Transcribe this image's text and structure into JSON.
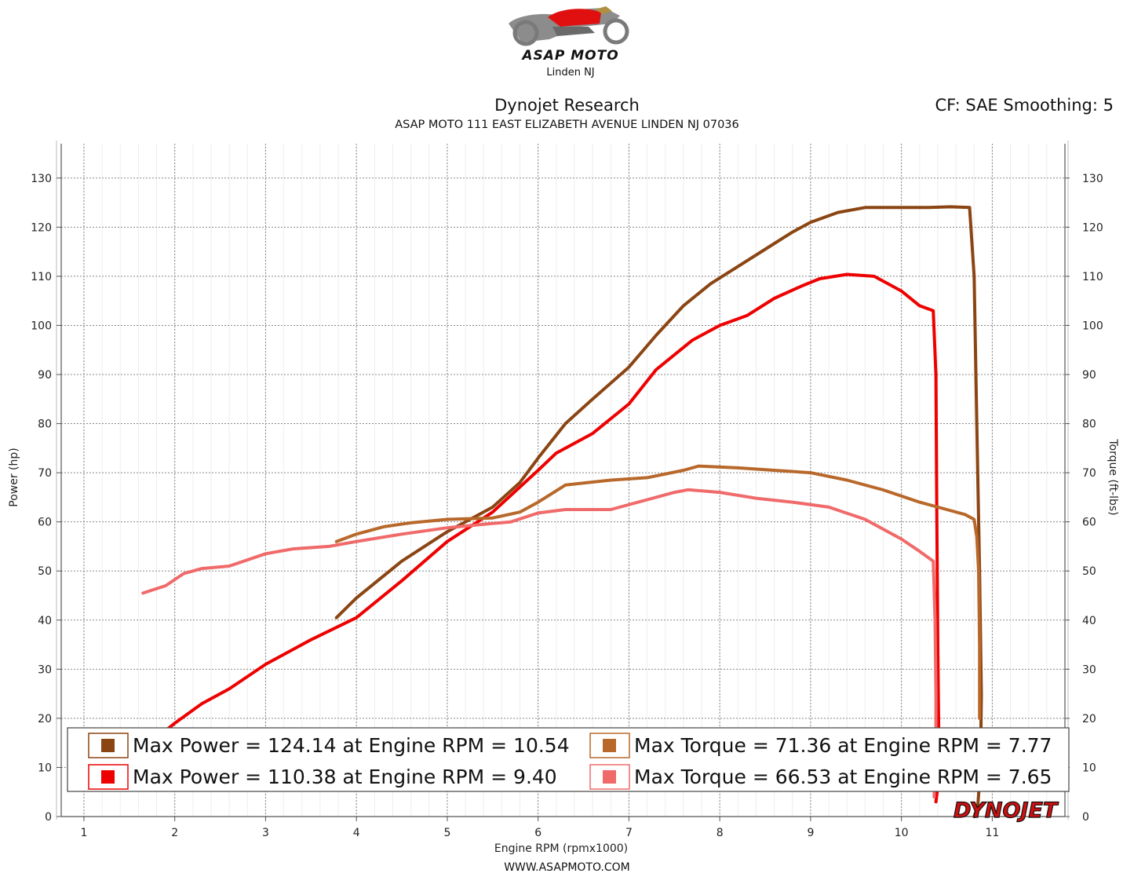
{
  "header": {
    "logo_text": "ASAP MOTO",
    "logo_subtext": "Linden NJ",
    "title": "Dynojet Research",
    "subtitle": "ASAP MOTO 111 EAST ELIZABETH AVENUE LINDEN NJ 07036",
    "correction": "CF: SAE Smoothing: 5"
  },
  "footer": {
    "website": "WWW.ASAPMOTO.COM"
  },
  "watermark": "DYNOJET",
  "chart_data": {
    "type": "line",
    "xlabel": "Engine RPM (rpmx1000)",
    "ylabel_left": "Power (hp)",
    "ylabel_right": "Torque (ft-lbs)",
    "xlim": [
      0.75,
      11.8
    ],
    "ylim": [
      0,
      137
    ],
    "x_ticks": [
      1,
      2,
      3,
      4,
      5,
      6,
      7,
      8,
      9,
      10,
      11
    ],
    "y_ticks": [
      0,
      10,
      20,
      30,
      40,
      50,
      60,
      70,
      80,
      90,
      100,
      110,
      120,
      130
    ],
    "grid": true,
    "legend_position": "bottom",
    "legend": [
      {
        "label": "Max Power = 124.14 at Engine RPM = 10.54",
        "color": "#8B4513"
      },
      {
        "label": "Max Power = 110.38 at Engine RPM = 9.40",
        "color": "#EE0000"
      },
      {
        "label": "Max Torque = 71.36 at Engine RPM = 7.77",
        "color": "#B8682A"
      },
      {
        "label": "Max Torque = 66.53 at Engine RPM = 7.65",
        "color": "#F06A6A"
      }
    ],
    "series": [
      {
        "axis": "left",
        "color": "#8B4513",
        "x": [
          3.78,
          4.0,
          4.5,
          5.0,
          5.5,
          5.8,
          6.0,
          6.3,
          6.6,
          7.0,
          7.3,
          7.6,
          7.9,
          8.2,
          8.5,
          8.8,
          9.0,
          9.3,
          9.6,
          10.0,
          10.3,
          10.54,
          10.75,
          10.8,
          10.83,
          10.86,
          10.88,
          10.87,
          10.84,
          10.8
        ],
        "y": [
          40.5,
          44.5,
          52,
          58,
          63,
          68,
          73,
          80,
          85,
          91.5,
          98,
          104,
          108.5,
          112,
          115.5,
          119,
          121,
          123,
          124,
          124,
          124,
          124.14,
          124,
          110,
          80,
          50,
          25,
          10,
          2,
          0
        ]
      },
      {
        "axis": "left",
        "color": "#EE0000",
        "x": [
          1.8,
          2.0,
          2.3,
          2.6,
          3.0,
          3.5,
          4.0,
          4.5,
          5.0,
          5.5,
          6.0,
          6.2,
          6.6,
          7.0,
          7.3,
          7.7,
          8.0,
          8.3,
          8.6,
          8.9,
          9.1,
          9.4,
          9.7,
          10.0,
          10.2,
          10.35,
          10.38,
          10.39,
          10.4,
          10.41,
          10.41,
          10.4,
          10.38
        ],
        "y": [
          16,
          19,
          23,
          26,
          31,
          36,
          40.5,
          48,
          56,
          62,
          70.5,
          74,
          78,
          84,
          91,
          97,
          100,
          102,
          105.5,
          108,
          109.5,
          110.38,
          110,
          107,
          104,
          103,
          90,
          60,
          35,
          18,
          10,
          6,
          3
        ]
      },
      {
        "axis": "right",
        "color": "#B8682A",
        "x": [
          3.78,
          4.0,
          4.3,
          4.6,
          5.0,
          5.5,
          5.8,
          6.0,
          6.3,
          6.8,
          7.2,
          7.6,
          7.77,
          8.2,
          8.6,
          9.0,
          9.4,
          9.8,
          10.2,
          10.5,
          10.7,
          10.8,
          10.83,
          10.85,
          10.86,
          10.86
        ],
        "y": [
          56,
          57.5,
          59,
          59.8,
          60.5,
          60.8,
          62,
          64,
          67.5,
          68.5,
          69,
          70.5,
          71.36,
          71,
          70.5,
          70,
          68.5,
          66.5,
          64,
          62.5,
          61.5,
          60.5,
          57,
          50,
          35,
          20
        ]
      },
      {
        "axis": "right",
        "color": "#F06A6A",
        "x": [
          1.65,
          1.9,
          2.1,
          2.3,
          2.6,
          3.0,
          3.3,
          3.7,
          4.0,
          4.5,
          5.0,
          5.4,
          5.7,
          6.0,
          6.3,
          6.8,
          7.2,
          7.5,
          7.65,
          8.0,
          8.4,
          8.8,
          9.2,
          9.6,
          10.0,
          10.2,
          10.35,
          10.37,
          10.38,
          10.38,
          10.37,
          10.36
        ],
        "y": [
          45.5,
          47,
          49.5,
          50.5,
          51,
          53.5,
          54.5,
          55,
          56,
          57.5,
          58.8,
          59.5,
          60,
          61.8,
          62.5,
          62.5,
          64.5,
          66,
          66.53,
          66,
          64.8,
          64,
          63,
          60.5,
          56.5,
          54,
          52,
          40,
          25,
          15,
          8,
          4
        ]
      }
    ]
  }
}
